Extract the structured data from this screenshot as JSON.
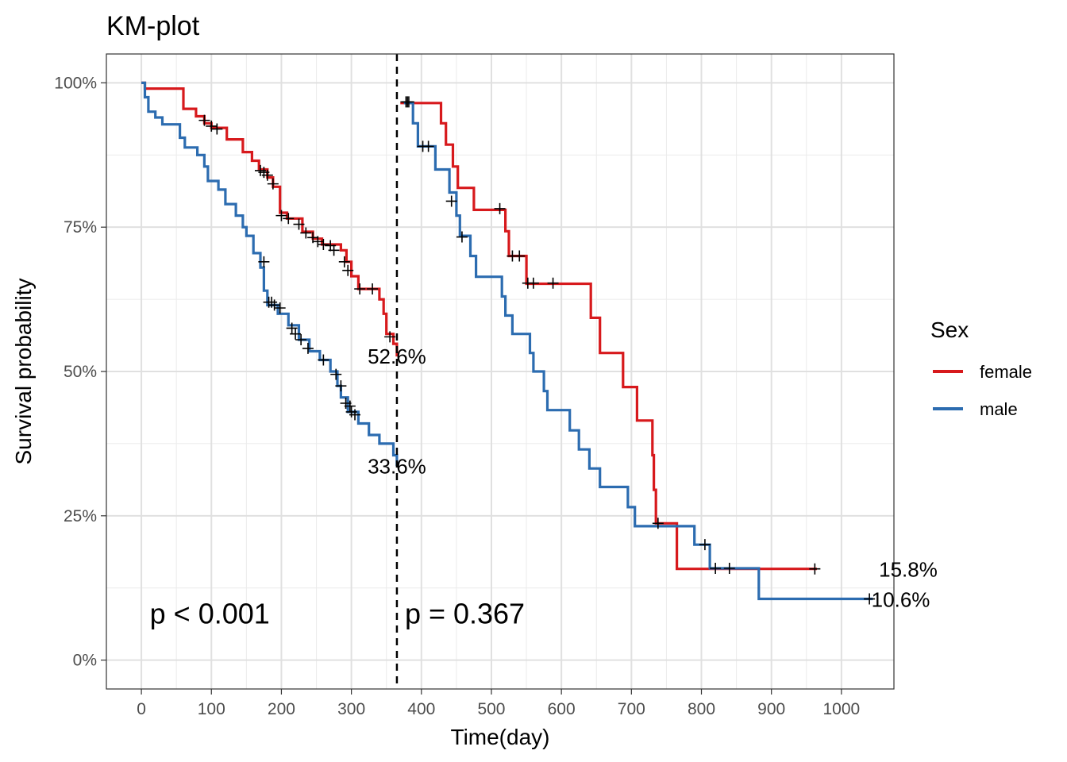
{
  "chart_data": {
    "type": "line",
    "title": "KM-plot",
    "xlabel": "Time(day)",
    "ylabel": "Survival probability",
    "xlim": [
      -50,
      1075
    ],
    "ylim": [
      -0.05,
      1.05
    ],
    "x_ticks": [
      0,
      100,
      200,
      300,
      400,
      500,
      600,
      700,
      800,
      900,
      1000
    ],
    "x_tick_labels": [
      "0",
      "100",
      "200",
      "300",
      "400",
      "500",
      "600",
      "700",
      "800",
      "900",
      "1000"
    ],
    "y_ticks": [
      0,
      0.25,
      0.5,
      0.75,
      1.0
    ],
    "y_tick_labels": [
      "0%",
      "25%",
      "50%",
      "75%",
      "100%"
    ],
    "grid": true,
    "cutoff_x": 365,
    "legend": {
      "title": "Sex",
      "position": "right"
    },
    "annotations": {
      "p_left": "p < 0.001",
      "p_right": "p = 0.367",
      "female_1y": "52.6%",
      "male_1y": "33.6%",
      "female_end": "15.8%",
      "male_end": "10.6%"
    },
    "series": [
      {
        "name": "female",
        "color": "#d7191c",
        "segment1": [
          [
            0,
            1.0
          ],
          [
            5,
            1.0
          ],
          [
            5,
            0.99
          ],
          [
            60,
            0.99
          ],
          [
            60,
            0.955
          ],
          [
            78,
            0.955
          ],
          [
            78,
            0.942
          ],
          [
            90,
            0.942
          ],
          [
            90,
            0.93
          ],
          [
            100,
            0.93
          ],
          [
            100,
            0.922
          ],
          [
            122,
            0.922
          ],
          [
            122,
            0.902
          ],
          [
            145,
            0.902
          ],
          [
            145,
            0.88
          ],
          [
            158,
            0.88
          ],
          [
            158,
            0.865
          ],
          [
            168,
            0.865
          ],
          [
            168,
            0.85
          ],
          [
            180,
            0.85
          ],
          [
            180,
            0.836
          ],
          [
            188,
            0.836
          ],
          [
            188,
            0.82
          ],
          [
            198,
            0.82
          ],
          [
            198,
            0.775
          ],
          [
            208,
            0.775
          ],
          [
            208,
            0.765
          ],
          [
            230,
            0.765
          ],
          [
            230,
            0.742
          ],
          [
            245,
            0.742
          ],
          [
            245,
            0.73
          ],
          [
            258,
            0.73
          ],
          [
            258,
            0.72
          ],
          [
            285,
            0.72
          ],
          [
            285,
            0.71
          ],
          [
            293,
            0.71
          ],
          [
            293,
            0.69
          ],
          [
            300,
            0.69
          ],
          [
            300,
            0.665
          ],
          [
            310,
            0.665
          ],
          [
            310,
            0.643
          ],
          [
            340,
            0.643
          ],
          [
            340,
            0.625
          ],
          [
            346,
            0.625
          ],
          [
            346,
            0.6
          ],
          [
            350,
            0.6
          ],
          [
            350,
            0.565
          ],
          [
            360,
            0.565
          ],
          [
            360,
            0.548
          ],
          [
            365,
            0.548
          ],
          [
            365,
            0.526
          ]
        ],
        "segment2": [
          [
            370,
            0.965
          ],
          [
            428,
            0.965
          ],
          [
            428,
            0.93
          ],
          [
            435,
            0.93
          ],
          [
            435,
            0.893
          ],
          [
            445,
            0.893
          ],
          [
            445,
            0.855
          ],
          [
            452,
            0.855
          ],
          [
            452,
            0.818
          ],
          [
            475,
            0.818
          ],
          [
            475,
            0.78
          ],
          [
            520,
            0.78
          ],
          [
            520,
            0.743
          ],
          [
            525,
            0.743
          ],
          [
            525,
            0.7
          ],
          [
            550,
            0.7
          ],
          [
            550,
            0.652
          ],
          [
            642,
            0.652
          ],
          [
            642,
            0.593
          ],
          [
            655,
            0.593
          ],
          [
            655,
            0.532
          ],
          [
            688,
            0.532
          ],
          [
            688,
            0.473
          ],
          [
            708,
            0.473
          ],
          [
            708,
            0.415
          ],
          [
            730,
            0.415
          ],
          [
            730,
            0.355
          ],
          [
            732,
            0.355
          ],
          [
            732,
            0.295
          ],
          [
            735,
            0.295
          ],
          [
            735,
            0.237
          ],
          [
            765,
            0.237
          ],
          [
            765,
            0.158
          ],
          [
            965,
            0.158
          ]
        ],
        "censor1": [
          [
            90,
            0.935
          ],
          [
            100,
            0.925
          ],
          [
            108,
            0.92
          ],
          [
            170,
            0.848
          ],
          [
            175,
            0.845
          ],
          [
            180,
            0.84
          ],
          [
            188,
            0.825
          ],
          [
            200,
            0.77
          ],
          [
            210,
            0.765
          ],
          [
            225,
            0.755
          ],
          [
            235,
            0.74
          ],
          [
            245,
            0.732
          ],
          [
            252,
            0.725
          ],
          [
            260,
            0.72
          ],
          [
            270,
            0.718
          ],
          [
            275,
            0.71
          ],
          [
            290,
            0.69
          ],
          [
            295,
            0.675
          ],
          [
            312,
            0.643
          ],
          [
            330,
            0.643
          ],
          [
            355,
            0.56
          ]
        ],
        "censor2": [
          [
            378,
            0.967
          ],
          [
            512,
            0.782
          ],
          [
            530,
            0.7
          ],
          [
            540,
            0.7
          ],
          [
            552,
            0.653
          ],
          [
            560,
            0.653
          ],
          [
            588,
            0.653
          ],
          [
            738,
            0.237
          ],
          [
            962,
            0.158
          ]
        ]
      },
      {
        "name": "male",
        "color": "#2c6cb0",
        "segment1": [
          [
            0,
            1.0
          ],
          [
            5,
            1.0
          ],
          [
            5,
            0.975
          ],
          [
            10,
            0.975
          ],
          [
            10,
            0.95
          ],
          [
            20,
            0.95
          ],
          [
            20,
            0.94
          ],
          [
            30,
            0.94
          ],
          [
            30,
            0.928
          ],
          [
            55,
            0.928
          ],
          [
            55,
            0.905
          ],
          [
            62,
            0.905
          ],
          [
            62,
            0.888
          ],
          [
            80,
            0.888
          ],
          [
            80,
            0.875
          ],
          [
            90,
            0.875
          ],
          [
            90,
            0.855
          ],
          [
            95,
            0.855
          ],
          [
            95,
            0.83
          ],
          [
            110,
            0.83
          ],
          [
            110,
            0.815
          ],
          [
            120,
            0.815
          ],
          [
            120,
            0.79
          ],
          [
            135,
            0.79
          ],
          [
            135,
            0.77
          ],
          [
            145,
            0.77
          ],
          [
            145,
            0.75
          ],
          [
            150,
            0.75
          ],
          [
            150,
            0.735
          ],
          [
            160,
            0.735
          ],
          [
            160,
            0.705
          ],
          [
            170,
            0.705
          ],
          [
            170,
            0.68
          ],
          [
            175,
            0.68
          ],
          [
            175,
            0.64
          ],
          [
            180,
            0.64
          ],
          [
            180,
            0.615
          ],
          [
            195,
            0.615
          ],
          [
            195,
            0.6
          ],
          [
            210,
            0.6
          ],
          [
            210,
            0.58
          ],
          [
            225,
            0.58
          ],
          [
            225,
            0.555
          ],
          [
            240,
            0.555
          ],
          [
            240,
            0.535
          ],
          [
            255,
            0.535
          ],
          [
            255,
            0.52
          ],
          [
            270,
            0.52
          ],
          [
            270,
            0.5
          ],
          [
            280,
            0.5
          ],
          [
            280,
            0.475
          ],
          [
            285,
            0.475
          ],
          [
            285,
            0.455
          ],
          [
            295,
            0.455
          ],
          [
            295,
            0.43
          ],
          [
            310,
            0.43
          ],
          [
            310,
            0.41
          ],
          [
            325,
            0.41
          ],
          [
            325,
            0.39
          ],
          [
            340,
            0.39
          ],
          [
            340,
            0.375
          ],
          [
            360,
            0.375
          ],
          [
            360,
            0.355
          ],
          [
            365,
            0.355
          ],
          [
            365,
            0.336
          ]
        ],
        "segment2": [
          [
            375,
            0.965
          ],
          [
            388,
            0.965
          ],
          [
            388,
            0.93
          ],
          [
            395,
            0.93
          ],
          [
            395,
            0.89
          ],
          [
            420,
            0.89
          ],
          [
            420,
            0.85
          ],
          [
            440,
            0.85
          ],
          [
            440,
            0.81
          ],
          [
            450,
            0.81
          ],
          [
            450,
            0.77
          ],
          [
            455,
            0.77
          ],
          [
            455,
            0.735
          ],
          [
            470,
            0.735
          ],
          [
            470,
            0.7
          ],
          [
            478,
            0.7
          ],
          [
            478,
            0.664
          ],
          [
            515,
            0.664
          ],
          [
            515,
            0.63
          ],
          [
            520,
            0.63
          ],
          [
            520,
            0.597
          ],
          [
            530,
            0.597
          ],
          [
            530,
            0.565
          ],
          [
            555,
            0.565
          ],
          [
            555,
            0.532
          ],
          [
            560,
            0.532
          ],
          [
            560,
            0.5
          ],
          [
            575,
            0.5
          ],
          [
            575,
            0.466
          ],
          [
            580,
            0.466
          ],
          [
            580,
            0.433
          ],
          [
            612,
            0.433
          ],
          [
            612,
            0.398
          ],
          [
            625,
            0.398
          ],
          [
            625,
            0.365
          ],
          [
            640,
            0.365
          ],
          [
            640,
            0.332
          ],
          [
            655,
            0.332
          ],
          [
            655,
            0.3
          ],
          [
            695,
            0.3
          ],
          [
            695,
            0.265
          ],
          [
            705,
            0.265
          ],
          [
            705,
            0.232
          ],
          [
            790,
            0.232
          ],
          [
            790,
            0.2
          ],
          [
            812,
            0.2
          ],
          [
            812,
            0.159
          ],
          [
            882,
            0.159
          ],
          [
            882,
            0.106
          ],
          [
            1045,
            0.106
          ]
        ],
        "censor1": [
          [
            175,
            0.69
          ],
          [
            182,
            0.62
          ],
          [
            186,
            0.62
          ],
          [
            190,
            0.615
          ],
          [
            198,
            0.61
          ],
          [
            215,
            0.575
          ],
          [
            220,
            0.565
          ],
          [
            228,
            0.555
          ],
          [
            238,
            0.54
          ],
          [
            260,
            0.52
          ],
          [
            278,
            0.495
          ],
          [
            285,
            0.475
          ],
          [
            292,
            0.445
          ],
          [
            298,
            0.44
          ],
          [
            300,
            0.43
          ],
          [
            305,
            0.425
          ]
        ],
        "censor2": [
          [
            380,
            0.967
          ],
          [
            382,
            0.967
          ],
          [
            402,
            0.89
          ],
          [
            410,
            0.89
          ],
          [
            443,
            0.795
          ],
          [
            458,
            0.733
          ],
          [
            805,
            0.2
          ],
          [
            820,
            0.159
          ],
          [
            840,
            0.159
          ],
          [
            1040,
            0.106
          ]
        ]
      }
    ]
  }
}
